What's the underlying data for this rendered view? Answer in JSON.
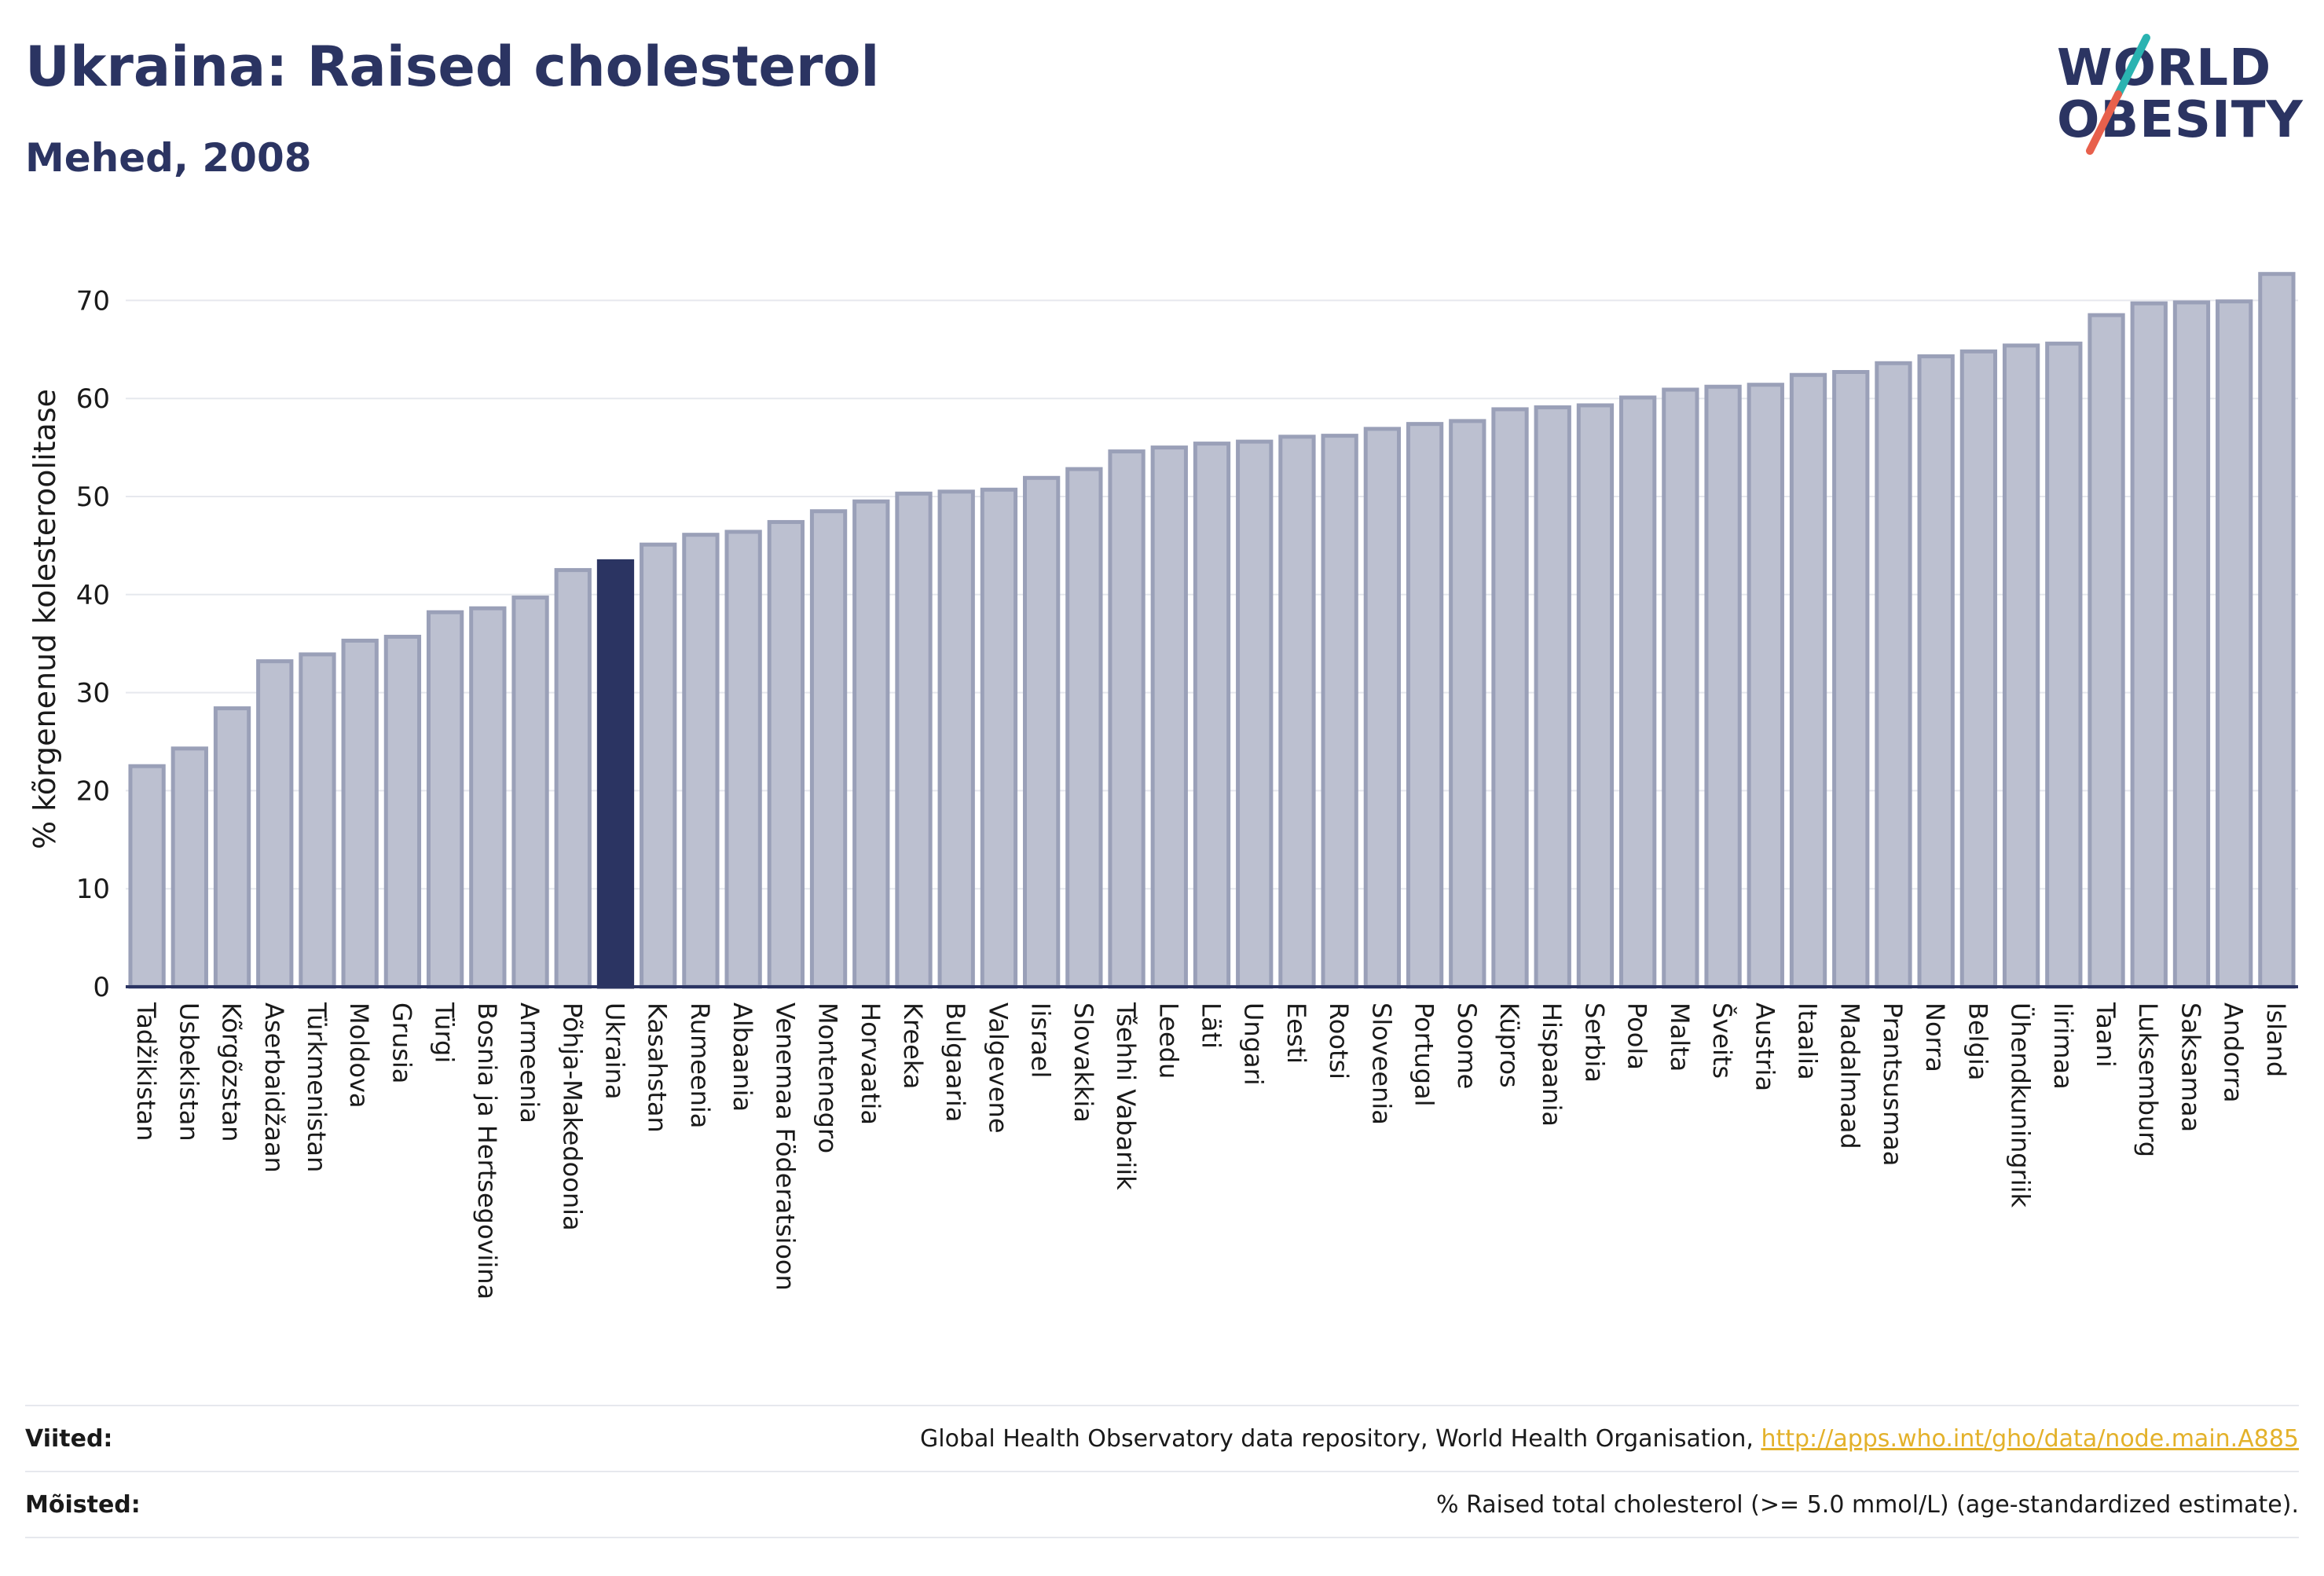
{
  "header": {
    "title": "Ukraina: Raised cholesterol",
    "subtitle": "Mehed, 2008"
  },
  "logo": {
    "line1": "WORLD",
    "line2": "OBESITY",
    "colors": {
      "text": "#2b3462",
      "slash_top": "#2ab3b1",
      "slash_bottom": "#e8604c"
    }
  },
  "colors": {
    "bar": "#bcc0d0",
    "bar_stroke": "#9aa0b8",
    "highlight": "#2b3462",
    "grid": "#e6e8ee",
    "axis": "#2b3462"
  },
  "chart_data": {
    "type": "bar",
    "ylabel": "% kõrgenenud kolesteroolitase",
    "ylim": [
      0,
      75
    ],
    "yticks": [
      0,
      10,
      20,
      30,
      40,
      50,
      60,
      70
    ],
    "grid": true,
    "highlight": "Ukraina",
    "categories": [
      "Tadžikistan",
      "Usbekistan",
      "Kõrgõzstan",
      "Aserbaidžaan",
      "Türkmenistan",
      "Moldova",
      "Grusia",
      "Türgi",
      "Bosnia ja Hertsegoviina",
      "Armeenia",
      "Põhja-Makedoonia",
      "Ukraina",
      "Kasahstan",
      "Rumeenia",
      "Albaania",
      "Venemaa Föderatsioon",
      "Montenegro",
      "Horvaatia",
      "Kreeka",
      "Bulgaaria",
      "Valgevene",
      "Iisrael",
      "Slovakkia",
      "Tšehhi Vabariik",
      "Leedu",
      "Läti",
      "Ungari",
      "Eesti",
      "Rootsi",
      "Sloveenia",
      "Portugal",
      "Soome",
      "Küpros",
      "Hispaania",
      "Serbia",
      "Poola",
      "Malta",
      "Šveits",
      "Austria",
      "Itaalia",
      "Madalmaad",
      "Prantsusmaa",
      "Norra",
      "Belgia",
      "Ühendkuningriik",
      "Iirimaa",
      "Taani",
      "Luksemburg",
      "Saksamaa",
      "Andorra",
      "Island"
    ],
    "values": [
      22.5,
      24.3,
      28.4,
      33.2,
      33.9,
      35.3,
      35.7,
      38.2,
      38.6,
      39.7,
      42.5,
      43.4,
      45.1,
      46.1,
      46.4,
      47.4,
      48.5,
      49.5,
      50.3,
      50.5,
      50.7,
      51.9,
      52.8,
      54.6,
      55.0,
      55.4,
      55.6,
      56.1,
      56.2,
      56.9,
      57.4,
      57.7,
      58.9,
      59.1,
      59.3,
      60.1,
      60.9,
      61.2,
      61.4,
      62.4,
      62.7,
      63.6,
      64.3,
      64.8,
      65.4,
      65.6,
      68.5,
      69.7,
      69.8,
      69.9,
      72.7
    ]
  },
  "references": {
    "sources_label": "Viited:",
    "sources_text": "Global Health Observatory data repository, World Health Organisation, ",
    "sources_link": "http://apps.who.int/gho/data/node.main.A885",
    "definitions_label": "Mõisted:",
    "definitions_text": "% Raised total cholesterol (>= 5.0 mmol/L) (age-standardized estimate)."
  }
}
